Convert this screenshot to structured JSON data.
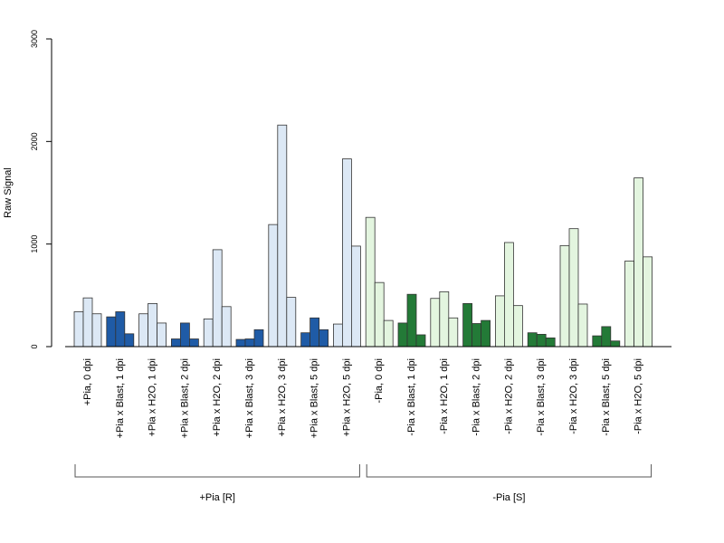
{
  "chart_data": {
    "type": "bar",
    "ylabel": "Raw Signal",
    "ylim": [
      0,
      3000
    ],
    "yticks": [
      0,
      1000,
      2000,
      3000
    ],
    "categories": [
      "+Pia, 0 dpi",
      "+Pia x Blast, 1 dpi",
      "+Pia x H2O, 1 dpi",
      "+Pia x Blast, 2 dpi",
      "+Pia x H2O, 2 dpi",
      "+Pia x Blast, 3 dpi",
      "+Pia x H2O, 3 dpi",
      "+Pia x Blast, 5 dpi",
      "+Pia x H2O, 5 dpi",
      "-Pia, 0 dpi",
      "-Pia x Blast, 1 dpi",
      "-Pia x H2O, 1 dpi",
      "-Pia x Blast, 2 dpi",
      "-Pia x H2O, 2 dpi",
      "-Pia x Blast, 3 dpi",
      "-Pia x H2O, 3 dpi",
      "-Pia x Blast, 5 dpi",
      "-Pia x H2O, 5 dpi"
    ],
    "values": [
      [
        340,
        475,
        320
      ],
      [
        290,
        340,
        125
      ],
      [
        320,
        420,
        230
      ],
      [
        75,
        230,
        75
      ],
      [
        270,
        945,
        390
      ],
      [
        70,
        75,
        165
      ],
      [
        1190,
        2160,
        480
      ],
      [
        135,
        280,
        165
      ],
      [
        220,
        1830,
        980
      ],
      [
        1260,
        625,
        255
      ],
      [
        230,
        510,
        115
      ],
      [
        470,
        535,
        280
      ],
      [
        420,
        225,
        255
      ],
      [
        495,
        1015,
        400
      ],
      [
        135,
        120,
        85
      ],
      [
        985,
        1150,
        415
      ],
      [
        105,
        195,
        55
      ],
      [
        835,
        1645,
        875
      ]
    ],
    "bar_colors": [
      "#dce8f5",
      "#1f5ba6",
      "#dce8f5",
      "#1f5ba6",
      "#dce8f5",
      "#1f5ba6",
      "#dce8f5",
      "#1f5ba6",
      "#dce8f5",
      "#e3f5df",
      "#237a37",
      "#e3f5df",
      "#237a37",
      "#e3f5df",
      "#237a37",
      "#e3f5df",
      "#237a37",
      "#e3f5df"
    ],
    "groups": [
      {
        "label": "+Pia [R]",
        "from": 0,
        "to": 8
      },
      {
        "label": "-Pia [S]",
        "from": 9,
        "to": 17
      }
    ],
    "grid": false,
    "legend": "none"
  }
}
